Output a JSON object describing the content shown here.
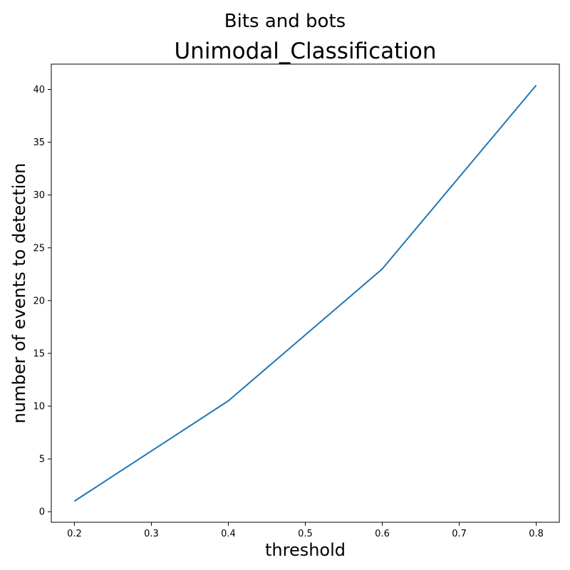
{
  "suptitle": "Bits and bots",
  "chart_data": {
    "type": "line",
    "title": "Unimodal_Classification",
    "xlabel": "threshold",
    "ylabel": "number of events to detection",
    "x": [
      0.2,
      0.4,
      0.6,
      0.8
    ],
    "series": [
      {
        "values": [
          1.0,
          10.5,
          23.0,
          40.4
        ],
        "color": "#1f77b4"
      }
    ],
    "xlim": [
      0.17,
      0.83
    ],
    "ylim": [
      -1.0,
      42.4
    ],
    "xticks": [
      "0.2",
      "0.3",
      "0.4",
      "0.5",
      "0.6",
      "0.7",
      "0.8"
    ],
    "yticks": [
      "0",
      "5",
      "10",
      "15",
      "20",
      "25",
      "30",
      "35",
      "40"
    ],
    "grid": false,
    "legend": "none"
  }
}
